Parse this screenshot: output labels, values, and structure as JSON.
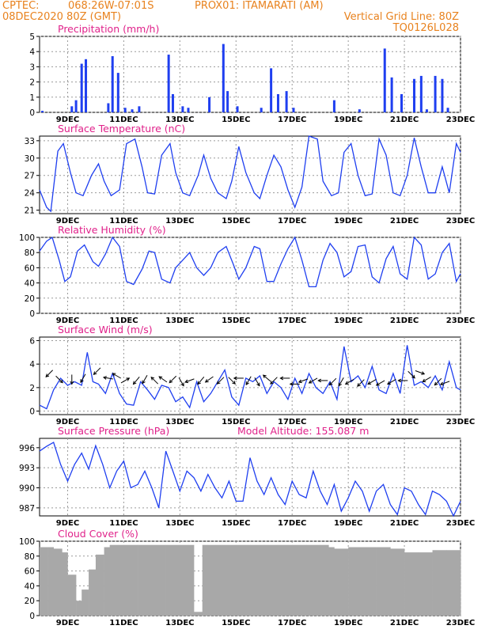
{
  "header": {
    "source": "CPTEC:",
    "coords": "068:26W-07:01S",
    "station": "PROX01: ITAMARATI (AM)",
    "init": "08DEC2020 80Z (GMT)",
    "grid_note": "Vertical Grid Line: 80Z",
    "model": "TQ0126L028"
  },
  "colors": {
    "header": "#e8821e",
    "title": "#e0218a",
    "line": "#1f3ff0",
    "cloud": "#a8a8a8",
    "wind_arrow": "#000000"
  },
  "x_ticks": [
    "9DEC",
    "11DEC",
    "13DEC",
    "15DEC",
    "17DEC",
    "19DEC",
    "21DEC",
    "23DEC"
  ],
  "x_tick_days": [
    9,
    11,
    13,
    15,
    17,
    19,
    21,
    23
  ],
  "x_range_days": [
    8,
    23
  ],
  "chart_data": [
    {
      "type": "bar",
      "title": "Precipitation (mm/h)",
      "xlabel": "",
      "ylabel": "",
      "ylim": [
        0,
        5
      ],
      "yticks": [
        0,
        1,
        2,
        3,
        4,
        5
      ],
      "grid": true,
      "x_day": [
        8.1,
        9.15,
        9.3,
        9.5,
        9.65,
        10.45,
        10.6,
        10.8,
        11.05,
        11.3,
        11.55,
        12.6,
        12.75,
        13.1,
        13.3,
        14.05,
        14.55,
        14.7,
        15.05,
        15.9,
        16.25,
        16.5,
        16.8,
        17.05,
        18.5,
        19.4,
        20.3,
        20.55,
        20.9,
        21.35,
        21.6,
        21.8,
        22.1,
        22.35,
        22.55
      ],
      "values": [
        0.1,
        0.4,
        0.8,
        3.2,
        3.5,
        0.6,
        3.7,
        2.6,
        0.3,
        0.2,
        0.4,
        3.8,
        1.2,
        0.4,
        0.3,
        1.0,
        4.5,
        1.4,
        0.4,
        0.3,
        2.9,
        1.2,
        1.4,
        0.3,
        0.8,
        0.2,
        4.2,
        2.3,
        1.2,
        2.2,
        2.4,
        0.2,
        2.4,
        2.2,
        0.3
      ]
    },
    {
      "type": "line",
      "title": "Surface Temperature (nC)",
      "ylim": [
        20.4,
        33.8
      ],
      "yticks": [
        21,
        24,
        27,
        30,
        33
      ],
      "grid": true,
      "series": [
        {
          "x_day": [
            8.0,
            8.25,
            8.4,
            8.65,
            8.85,
            9.1,
            9.3,
            9.55,
            9.85,
            10.1,
            10.3,
            10.55,
            10.85,
            11.1,
            11.4,
            11.65,
            11.85,
            12.1,
            12.35,
            12.65,
            12.85,
            13.1,
            13.35,
            13.65,
            13.85,
            14.1,
            14.35,
            14.65,
            14.85,
            15.1,
            15.35,
            15.65,
            15.85,
            16.1,
            16.35,
            16.6,
            16.85,
            17.1,
            17.35,
            17.6,
            17.9,
            18.1,
            18.4,
            18.65,
            18.85,
            19.1,
            19.35,
            19.6,
            19.85,
            20.1,
            20.35,
            20.6,
            20.85,
            21.1,
            21.35,
            21.6,
            21.85,
            22.1,
            22.35,
            22.6,
            22.85,
            23.0
          ],
          "values": [
            24.5,
            21.5,
            20.8,
            31.2,
            32.5,
            27.5,
            24.0,
            23.5,
            27.0,
            29.0,
            26.0,
            23.5,
            24.5,
            32.5,
            33.3,
            28.5,
            24.0,
            23.8,
            30.5,
            32.5,
            27.5,
            24.0,
            23.5,
            27.0,
            30.5,
            26.5,
            24.0,
            23.0,
            26.0,
            32.0,
            27.5,
            24.0,
            23.0,
            27.0,
            30.5,
            28.5,
            24.5,
            21.5,
            25.0,
            33.8,
            33.3,
            26.0,
            23.5,
            24.0,
            31.0,
            32.5,
            27.0,
            23.5,
            23.8,
            33.3,
            30.5,
            24.0,
            23.5,
            27.0,
            33.5,
            28.5,
            24.0,
            24.0,
            28.5,
            24.0,
            32.5,
            31.0
          ]
        }
      ]
    },
    {
      "type": "line",
      "title": "Relative Humidity (%)",
      "ylim": [
        0,
        100
      ],
      "yticks": [
        0,
        20,
        40,
        60,
        80,
        100
      ],
      "grid": true,
      "series": [
        {
          "x_day": [
            8.0,
            8.25,
            8.45,
            8.7,
            8.9,
            9.1,
            9.35,
            9.6,
            9.9,
            10.1,
            10.35,
            10.6,
            10.85,
            11.1,
            11.35,
            11.65,
            11.9,
            12.1,
            12.35,
            12.65,
            12.85,
            13.1,
            13.35,
            13.6,
            13.85,
            14.1,
            14.35,
            14.65,
            14.9,
            15.1,
            15.35,
            15.65,
            15.85,
            16.1,
            16.35,
            16.6,
            16.85,
            17.1,
            17.35,
            17.6,
            17.85,
            18.1,
            18.35,
            18.6,
            18.85,
            19.1,
            19.35,
            19.6,
            19.85,
            20.1,
            20.35,
            20.6,
            20.85,
            21.1,
            21.35,
            21.6,
            21.85,
            22.1,
            22.35,
            22.6,
            22.85,
            23.0
          ],
          "values": [
            82.0,
            95.0,
            100.0,
            70.0,
            42.0,
            48.0,
            82.0,
            90.0,
            68.0,
            62.0,
            78.0,
            100.0,
            88.0,
            42.0,
            38.0,
            58.0,
            82.0,
            80.0,
            45.0,
            40.0,
            60.0,
            70.0,
            80.0,
            60.0,
            50.0,
            60.0,
            80.0,
            88.0,
            65.0,
            45.0,
            60.0,
            88.0,
            85.0,
            42.0,
            42.0,
            65.0,
            85.0,
            100.0,
            70.0,
            35.0,
            35.0,
            70.0,
            92.0,
            80.0,
            48.0,
            55.0,
            88.0,
            90.0,
            48.0,
            40.0,
            72.0,
            88.0,
            52.0,
            45.0,
            100.0,
            90.0,
            45.0,
            52.0,
            80.0,
            92.0,
            42.0,
            52.0
          ]
        }
      ]
    },
    {
      "type": "line",
      "title": "Surface Wind (m/s)",
      "ylim": [
        -0.3,
        6.3
      ],
      "yticks": [
        0,
        2,
        4,
        6
      ],
      "grid": true,
      "series": [
        {
          "x_day": [
            8.0,
            8.25,
            8.5,
            8.75,
            9.0,
            9.25,
            9.5,
            9.7,
            9.9,
            10.1,
            10.35,
            10.6,
            10.85,
            11.1,
            11.35,
            11.6,
            11.85,
            12.1,
            12.35,
            12.6,
            12.85,
            13.1,
            13.35,
            13.6,
            13.85,
            14.1,
            14.35,
            14.6,
            14.85,
            15.1,
            15.35,
            15.6,
            15.85,
            16.1,
            16.35,
            16.6,
            16.85,
            17.1,
            17.35,
            17.6,
            17.85,
            18.1,
            18.35,
            18.6,
            18.85,
            19.1,
            19.35,
            19.6,
            19.85,
            20.1,
            20.35,
            20.6,
            20.85,
            21.1,
            21.35,
            21.6,
            21.85,
            22.1,
            22.35,
            22.6,
            22.85,
            23.0
          ],
          "values": [
            0.5,
            0.2,
            1.8,
            2.8,
            2.2,
            2.5,
            2.2,
            5.0,
            2.5,
            2.3,
            1.5,
            3.2,
            1.5,
            0.6,
            0.5,
            2.5,
            1.8,
            1.0,
            2.2,
            2.0,
            0.8,
            1.2,
            0.3,
            2.5,
            0.8,
            1.5,
            2.5,
            3.5,
            1.2,
            0.5,
            2.8,
            2.5,
            3.0,
            1.5,
            2.5,
            2.0,
            1.0,
            2.8,
            1.5,
            3.2,
            2.0,
            1.5,
            2.5,
            1.0,
            5.5,
            2.5,
            3.0,
            2.0,
            3.8,
            1.8,
            1.5,
            3.2,
            1.5,
            5.6,
            2.2,
            2.5,
            2.0,
            3.0,
            1.8,
            4.2,
            2.0,
            1.8
          ]
        }
      ],
      "arrows": {
        "x_day": [
          8.35,
          8.7,
          9.15,
          9.55,
          10.05,
          10.45,
          10.75,
          11.05,
          11.45,
          11.75,
          12.1,
          12.4,
          12.75,
          13.05,
          13.35,
          13.75,
          14.05,
          14.45,
          14.85,
          15.1,
          15.45,
          15.75,
          16.1,
          16.35,
          16.75,
          17.1,
          17.4,
          17.75,
          18.1,
          18.45,
          18.75,
          19.05,
          19.45,
          19.85,
          20.15,
          20.55,
          20.95,
          21.25,
          21.55,
          21.8,
          22.2,
          22.45
        ],
        "y": [
          3.2,
          2.7,
          2.7,
          2.8,
          3.4,
          2.8,
          3.0,
          2.6,
          2.6,
          2.7,
          2.6,
          2.7,
          2.7,
          2.5,
          2.6,
          2.6,
          2.7,
          2.6,
          2.6,
          2.8,
          2.6,
          2.5,
          2.8,
          2.6,
          2.8,
          2.3,
          2.6,
          2.6,
          2.6,
          2.5,
          2.5,
          2.5,
          2.4,
          2.5,
          2.4,
          2.5,
          2.6,
          3.1,
          3.3,
          2.7,
          2.5,
          2.4
        ],
        "dir_deg": [
          225,
          315,
          270,
          240,
          225,
          170,
          150,
          30,
          230,
          240,
          135,
          145,
          225,
          300,
          200,
          230,
          215,
          225,
          315,
          180,
          240,
          300,
          140,
          225,
          180,
          180,
          200,
          210,
          180,
          225,
          240,
          210,
          225,
          210,
          210,
          210,
          180,
          315,
          340,
          210,
          225,
          200
        ]
      }
    },
    {
      "type": "line",
      "title": "Surface Pressure (hPa)",
      "annotation": "Model Altitude: 155.087 m",
      "ylim": [
        985.8,
        997.4
      ],
      "yticks": [
        987,
        990,
        993,
        996
      ],
      "grid": true,
      "series": [
        {
          "x_day": [
            8.0,
            8.25,
            8.5,
            8.75,
            9.0,
            9.25,
            9.5,
            9.75,
            10.0,
            10.25,
            10.5,
            10.75,
            11.0,
            11.25,
            11.5,
            11.75,
            12.0,
            12.25,
            12.5,
            12.75,
            13.0,
            13.25,
            13.5,
            13.75,
            14.0,
            14.25,
            14.5,
            14.75,
            15.0,
            15.25,
            15.5,
            15.75,
            16.0,
            16.25,
            16.5,
            16.75,
            17.0,
            17.25,
            17.5,
            17.75,
            18.0,
            18.25,
            18.5,
            18.75,
            19.0,
            19.25,
            19.5,
            19.75,
            20.0,
            20.25,
            20.5,
            20.75,
            21.0,
            21.25,
            21.5,
            21.75,
            22.0,
            22.25,
            22.5,
            22.75,
            23.0
          ],
          "values": [
            995.5,
            996.2,
            996.8,
            993.5,
            991.0,
            993.5,
            995.2,
            992.8,
            996.3,
            993.5,
            990.0,
            992.5,
            994.0,
            990.0,
            990.5,
            992.5,
            990.0,
            987.0,
            995.5,
            992.5,
            989.5,
            992.5,
            991.5,
            989.5,
            992.0,
            990.0,
            988.5,
            991.0,
            988.0,
            988.0,
            994.5,
            991.0,
            989.0,
            991.5,
            989.0,
            987.5,
            991.0,
            989.0,
            988.5,
            992.5,
            989.5,
            987.5,
            990.5,
            986.5,
            988.5,
            991.0,
            989.5,
            986.5,
            989.5,
            990.5,
            987.5,
            986.0,
            990.0,
            989.5,
            987.5,
            986.0,
            989.5,
            989.0,
            988.0,
            985.8,
            988.0
          ]
        }
      ]
    },
    {
      "type": "bar",
      "title": "Cloud Cover (%)",
      "ylim": [
        0,
        100
      ],
      "yticks": [
        0,
        20,
        40,
        60,
        80,
        100
      ],
      "grid": true,
      "x_day": [
        8.0,
        8.3,
        8.5,
        8.8,
        9.0,
        9.3,
        9.5,
        9.75,
        10.0,
        10.3,
        10.5,
        10.8,
        11.0,
        11.5,
        12.0,
        12.5,
        13.0,
        13.3,
        13.5,
        13.8,
        14.0,
        14.5,
        15.0,
        15.5,
        16.0,
        16.5,
        17.0,
        17.5,
        18.0,
        18.3,
        18.5,
        19.0,
        19.5,
        20.0,
        20.5,
        21.0,
        21.5,
        22.0,
        22.5,
        23.0
      ],
      "values": [
        92,
        92,
        90,
        85,
        55,
        20,
        35,
        62,
        82,
        92,
        95,
        95,
        95,
        95,
        95,
        95,
        95,
        95,
        5,
        95,
        95,
        95,
        95,
        95,
        95,
        95,
        95,
        95,
        95,
        92,
        90,
        92,
        92,
        92,
        90,
        85,
        85,
        88,
        88,
        90
      ]
    }
  ]
}
